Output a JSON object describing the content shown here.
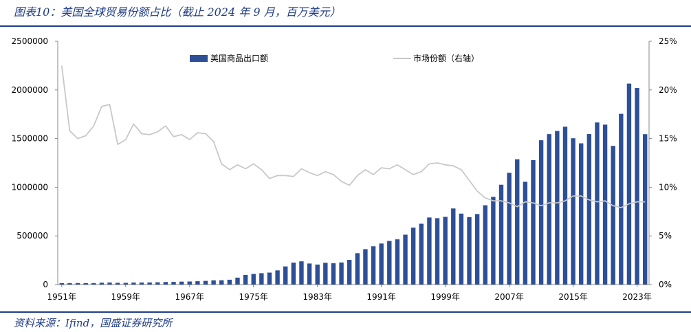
{
  "header": {
    "title": "图表10：美国全球贸易份额占比（截止 2024 年 9 月，百万美元）"
  },
  "footer": {
    "source": "资料来源：Ifind，国盛证券研究所"
  },
  "colors": {
    "accent": "#1f3c88",
    "bar": "#2d4f96",
    "line": "#c8c8c8"
  },
  "chart_data": {
    "type": "bar",
    "title": "",
    "xlabel": "",
    "ylabel": "",
    "x": [
      1951,
      1952,
      1953,
      1954,
      1955,
      1956,
      1957,
      1958,
      1959,
      1960,
      1961,
      1962,
      1963,
      1964,
      1965,
      1966,
      1967,
      1968,
      1969,
      1970,
      1971,
      1972,
      1973,
      1974,
      1975,
      1976,
      1977,
      1978,
      1979,
      1980,
      1981,
      1982,
      1983,
      1984,
      1985,
      1986,
      1987,
      1988,
      1989,
      1990,
      1991,
      1992,
      1993,
      1994,
      1995,
      1996,
      1997,
      1998,
      1999,
      2000,
      2001,
      2002,
      2003,
      2004,
      2005,
      2006,
      2007,
      2008,
      2009,
      2010,
      2011,
      2012,
      2013,
      2014,
      2015,
      2016,
      2017,
      2018,
      2019,
      2020,
      2021,
      2022,
      2023,
      2024
    ],
    "x_tick_labels": [
      "1951年",
      "1959年",
      "1967年",
      "1975年",
      "1983年",
      "1991年",
      "1999年",
      "2007年",
      "2015年",
      "2023年"
    ],
    "x_tick_years": [
      1951,
      1959,
      1967,
      1975,
      1983,
      1991,
      1999,
      2007,
      2015,
      2023
    ],
    "ylim": [
      0,
      2500000
    ],
    "y_ticks": [
      0,
      500000,
      1000000,
      1500000,
      2000000,
      2500000
    ],
    "y2lim": [
      0,
      25
    ],
    "y2_ticks": [
      "0%",
      "5%",
      "10%",
      "15%",
      "20%",
      "25%"
    ],
    "legend_position": "top",
    "series": [
      {
        "name": "美国商品出口额",
        "type": "bar",
        "axis": "left",
        "values": [
          15000,
          15200,
          15800,
          15100,
          15500,
          19100,
          20800,
          17900,
          17600,
          20600,
          21000,
          21700,
          23400,
          26700,
          27500,
          30400,
          31600,
          34600,
          38000,
          43200,
          44100,
          49800,
          71300,
          99400,
          108900,
          117000,
          123200,
          145800,
          186400,
          225600,
          238700,
          216400,
          205600,
          224000,
          218800,
          227200,
          254100,
          322400,
          363800,
          393600,
          421700,
          448200,
          464800,
          512600,
          584700,
          625100,
          689200,
          682100,
          695800,
          781900,
          729100,
          693100,
          724800,
          814900,
          901100,
          1025900,
          1148200,
          1287400,
          1056000,
          1278300,
          1482500,
          1545700,
          1578500,
          1621900,
          1503100,
          1451000,
          1546300,
          1665300,
          1643200,
          1424900,
          1754300,
          2064800,
          2019500,
          1545000
        ]
      },
      {
        "name": "市场份额（右轴）",
        "type": "line",
        "axis": "right",
        "values": [
          22.5,
          15.8,
          15.0,
          15.3,
          16.3,
          18.3,
          18.5,
          14.4,
          14.9,
          16.5,
          15.5,
          15.4,
          15.7,
          16.3,
          15.2,
          15.4,
          14.9,
          15.6,
          15.5,
          14.7,
          12.4,
          11.8,
          12.3,
          11.9,
          12.4,
          11.8,
          10.9,
          11.2,
          11.2,
          11.1,
          11.9,
          11.5,
          11.2,
          11.6,
          11.3,
          10.6,
          10.2,
          11.2,
          11.8,
          11.3,
          12.0,
          11.9,
          12.3,
          11.8,
          11.3,
          11.6,
          12.4,
          12.5,
          12.3,
          12.2,
          11.8,
          10.7,
          9.6,
          8.9,
          8.6,
          8.6,
          8.4,
          8.0,
          8.5,
          8.4,
          8.1,
          8.4,
          8.4,
          8.6,
          9.1,
          9.1,
          8.7,
          8.5,
          8.6,
          8.1,
          7.9,
          8.3,
          8.5,
          8.5
        ]
      }
    ]
  }
}
